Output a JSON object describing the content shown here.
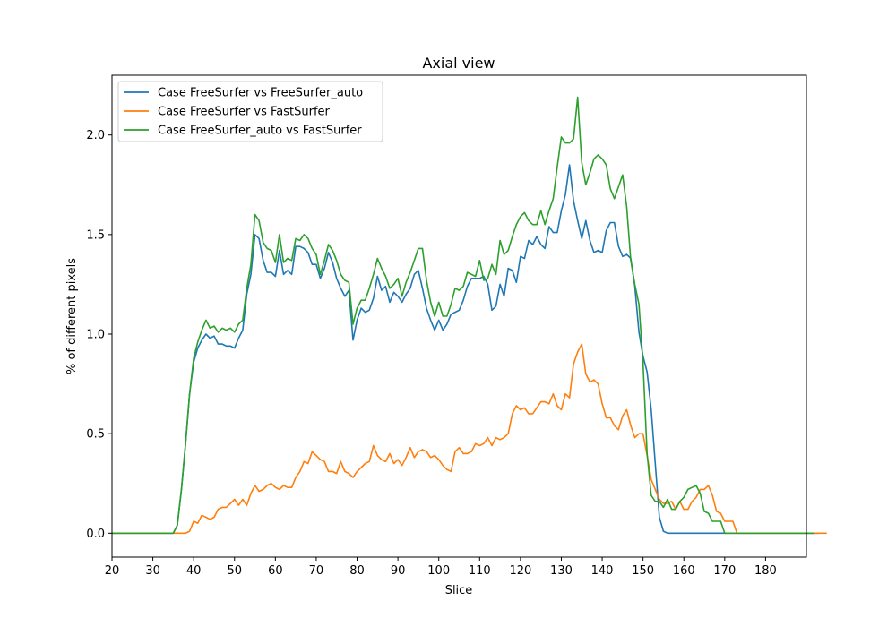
{
  "chart_data": {
    "type": "line",
    "title": "Axial view",
    "xlabel": "Slice",
    "ylabel": "% of different pixels",
    "xlim": [
      20,
      190
    ],
    "ylim": [
      -0.12,
      2.3
    ],
    "xticks": [
      20,
      30,
      40,
      50,
      60,
      70,
      80,
      90,
      100,
      110,
      120,
      130,
      140,
      150,
      160,
      170,
      180
    ],
    "xtick_labels": [
      "20",
      "30",
      "40",
      "50",
      "60",
      "70",
      "80",
      "90",
      "100",
      "110",
      "120",
      "130",
      "140",
      "150",
      "160",
      "170",
      "180"
    ],
    "yticks": [
      0.0,
      0.5,
      1.0,
      1.5,
      2.0
    ],
    "ytick_labels": [
      "0.0",
      "0.5",
      "1.0",
      "1.5",
      "2.0"
    ],
    "grid": false,
    "legend_position": "top-left",
    "x_start": 20,
    "series": [
      {
        "name": "Case FreeSurfer vs FreeSurfer_auto",
        "color": "#1f77b4",
        "values": [
          0,
          0,
          0,
          0,
          0,
          0,
          0,
          0,
          0,
          0,
          0,
          0,
          0,
          0,
          0,
          0,
          0.04,
          0.22,
          0.45,
          0.7,
          0.86,
          0.93,
          0.97,
          1.0,
          0.98,
          0.99,
          0.95,
          0.95,
          0.94,
          0.94,
          0.93,
          0.98,
          1.02,
          1.2,
          1.3,
          1.5,
          1.48,
          1.37,
          1.31,
          1.31,
          1.29,
          1.42,
          1.3,
          1.32,
          1.3,
          1.44,
          1.44,
          1.43,
          1.41,
          1.35,
          1.35,
          1.28,
          1.33,
          1.41,
          1.36,
          1.28,
          1.23,
          1.19,
          1.22,
          0.97,
          1.07,
          1.13,
          1.11,
          1.12,
          1.18,
          1.29,
          1.22,
          1.24,
          1.16,
          1.21,
          1.19,
          1.16,
          1.2,
          1.23,
          1.3,
          1.32,
          1.23,
          1.13,
          1.07,
          1.02,
          1.07,
          1.02,
          1.05,
          1.1,
          1.11,
          1.12,
          1.17,
          1.24,
          1.28,
          1.28,
          1.28,
          1.29,
          1.25,
          1.12,
          1.14,
          1.25,
          1.19,
          1.33,
          1.32,
          1.26,
          1.39,
          1.38,
          1.47,
          1.45,
          1.49,
          1.45,
          1.43,
          1.54,
          1.51,
          1.51,
          1.62,
          1.7,
          1.85,
          1.67,
          1.57,
          1.48,
          1.57,
          1.47,
          1.41,
          1.42,
          1.41,
          1.52,
          1.56,
          1.56,
          1.44,
          1.39,
          1.4,
          1.38,
          1.24,
          1.01,
          0.89,
          0.81,
          0.62,
          0.35,
          0.08,
          0.01,
          0,
          0,
          0,
          0,
          0,
          0,
          0,
          0,
          0,
          0,
          0,
          0,
          0,
          0,
          0,
          0,
          0,
          0,
          0,
          0,
          0,
          0,
          0,
          0,
          0,
          0,
          0,
          0,
          0,
          0,
          0,
          0,
          0,
          0,
          0,
          0,
          0,
          0
        ]
      },
      {
        "name": "Case FreeSurfer vs FastSurfer",
        "color": "#ff7f0e",
        "values": [
          0,
          0,
          0,
          0,
          0,
          0,
          0,
          0,
          0,
          0,
          0,
          0,
          0,
          0,
          0,
          0,
          0,
          0,
          0,
          0.01,
          0.06,
          0.05,
          0.09,
          0.08,
          0.07,
          0.08,
          0.12,
          0.13,
          0.13,
          0.15,
          0.17,
          0.14,
          0.17,
          0.14,
          0.2,
          0.24,
          0.21,
          0.22,
          0.24,
          0.25,
          0.23,
          0.22,
          0.24,
          0.23,
          0.23,
          0.28,
          0.31,
          0.36,
          0.35,
          0.41,
          0.39,
          0.37,
          0.36,
          0.31,
          0.31,
          0.3,
          0.36,
          0.31,
          0.3,
          0.28,
          0.31,
          0.33,
          0.35,
          0.36,
          0.44,
          0.39,
          0.37,
          0.36,
          0.4,
          0.35,
          0.37,
          0.34,
          0.38,
          0.43,
          0.38,
          0.41,
          0.42,
          0.41,
          0.38,
          0.39,
          0.37,
          0.34,
          0.32,
          0.31,
          0.41,
          0.43,
          0.4,
          0.4,
          0.41,
          0.45,
          0.44,
          0.45,
          0.48,
          0.44,
          0.48,
          0.47,
          0.48,
          0.5,
          0.6,
          0.64,
          0.62,
          0.63,
          0.6,
          0.6,
          0.63,
          0.66,
          0.66,
          0.65,
          0.7,
          0.64,
          0.62,
          0.7,
          0.68,
          0.85,
          0.91,
          0.95,
          0.8,
          0.76,
          0.77,
          0.75,
          0.65,
          0.58,
          0.58,
          0.54,
          0.52,
          0.59,
          0.62,
          0.54,
          0.48,
          0.5,
          0.5,
          0.39,
          0.27,
          0.22,
          0.17,
          0.15,
          0.15,
          0.16,
          0.12,
          0.16,
          0.12,
          0.12,
          0.16,
          0.18,
          0.22,
          0.22,
          0.24,
          0.19,
          0.11,
          0.1,
          0.06,
          0.06,
          0.06,
          0,
          0,
          0,
          0,
          0,
          0,
          0,
          0,
          0,
          0,
          0,
          0,
          0,
          0,
          0,
          0,
          0,
          0,
          0,
          0,
          0,
          0,
          0
        ]
      },
      {
        "name": "Case FreeSurfer_auto vs FastSurfer",
        "color": "#2ca02c",
        "values": [
          0,
          0,
          0,
          0,
          0,
          0,
          0,
          0,
          0,
          0,
          0,
          0,
          0,
          0,
          0,
          0,
          0.04,
          0.22,
          0.45,
          0.7,
          0.88,
          0.96,
          1.02,
          1.07,
          1.03,
          1.04,
          1.01,
          1.03,
          1.02,
          1.03,
          1.01,
          1.05,
          1.07,
          1.23,
          1.35,
          1.6,
          1.57,
          1.46,
          1.43,
          1.42,
          1.36,
          1.5,
          1.36,
          1.38,
          1.37,
          1.48,
          1.47,
          1.5,
          1.48,
          1.43,
          1.4,
          1.3,
          1.37,
          1.45,
          1.42,
          1.37,
          1.3,
          1.27,
          1.26,
          1.05,
          1.13,
          1.17,
          1.17,
          1.23,
          1.3,
          1.38,
          1.33,
          1.29,
          1.23,
          1.25,
          1.28,
          1.19,
          1.26,
          1.31,
          1.37,
          1.43,
          1.43,
          1.27,
          1.16,
          1.09,
          1.16,
          1.09,
          1.09,
          1.15,
          1.23,
          1.22,
          1.24,
          1.31,
          1.3,
          1.29,
          1.37,
          1.27,
          1.28,
          1.35,
          1.3,
          1.47,
          1.4,
          1.42,
          1.49,
          1.55,
          1.59,
          1.61,
          1.57,
          1.55,
          1.55,
          1.62,
          1.55,
          1.62,
          1.68,
          1.84,
          1.99,
          1.96,
          1.96,
          1.98,
          2.19,
          1.86,
          1.75,
          1.81,
          1.88,
          1.9,
          1.88,
          1.85,
          1.73,
          1.68,
          1.74,
          1.8,
          1.64,
          1.37,
          1.25,
          1.15,
          0.86,
          0.4,
          0.19,
          0.16,
          0.16,
          0.13,
          0.17,
          0.12,
          0.12,
          0.16,
          0.18,
          0.22,
          0.23,
          0.24,
          0.2,
          0.11,
          0.1,
          0.06,
          0.06,
          0.06,
          0,
          0,
          0,
          0,
          0,
          0,
          0,
          0,
          0,
          0,
          0,
          0,
          0,
          0,
          0,
          0,
          0,
          0,
          0,
          0,
          0,
          0,
          0
        ]
      }
    ]
  }
}
